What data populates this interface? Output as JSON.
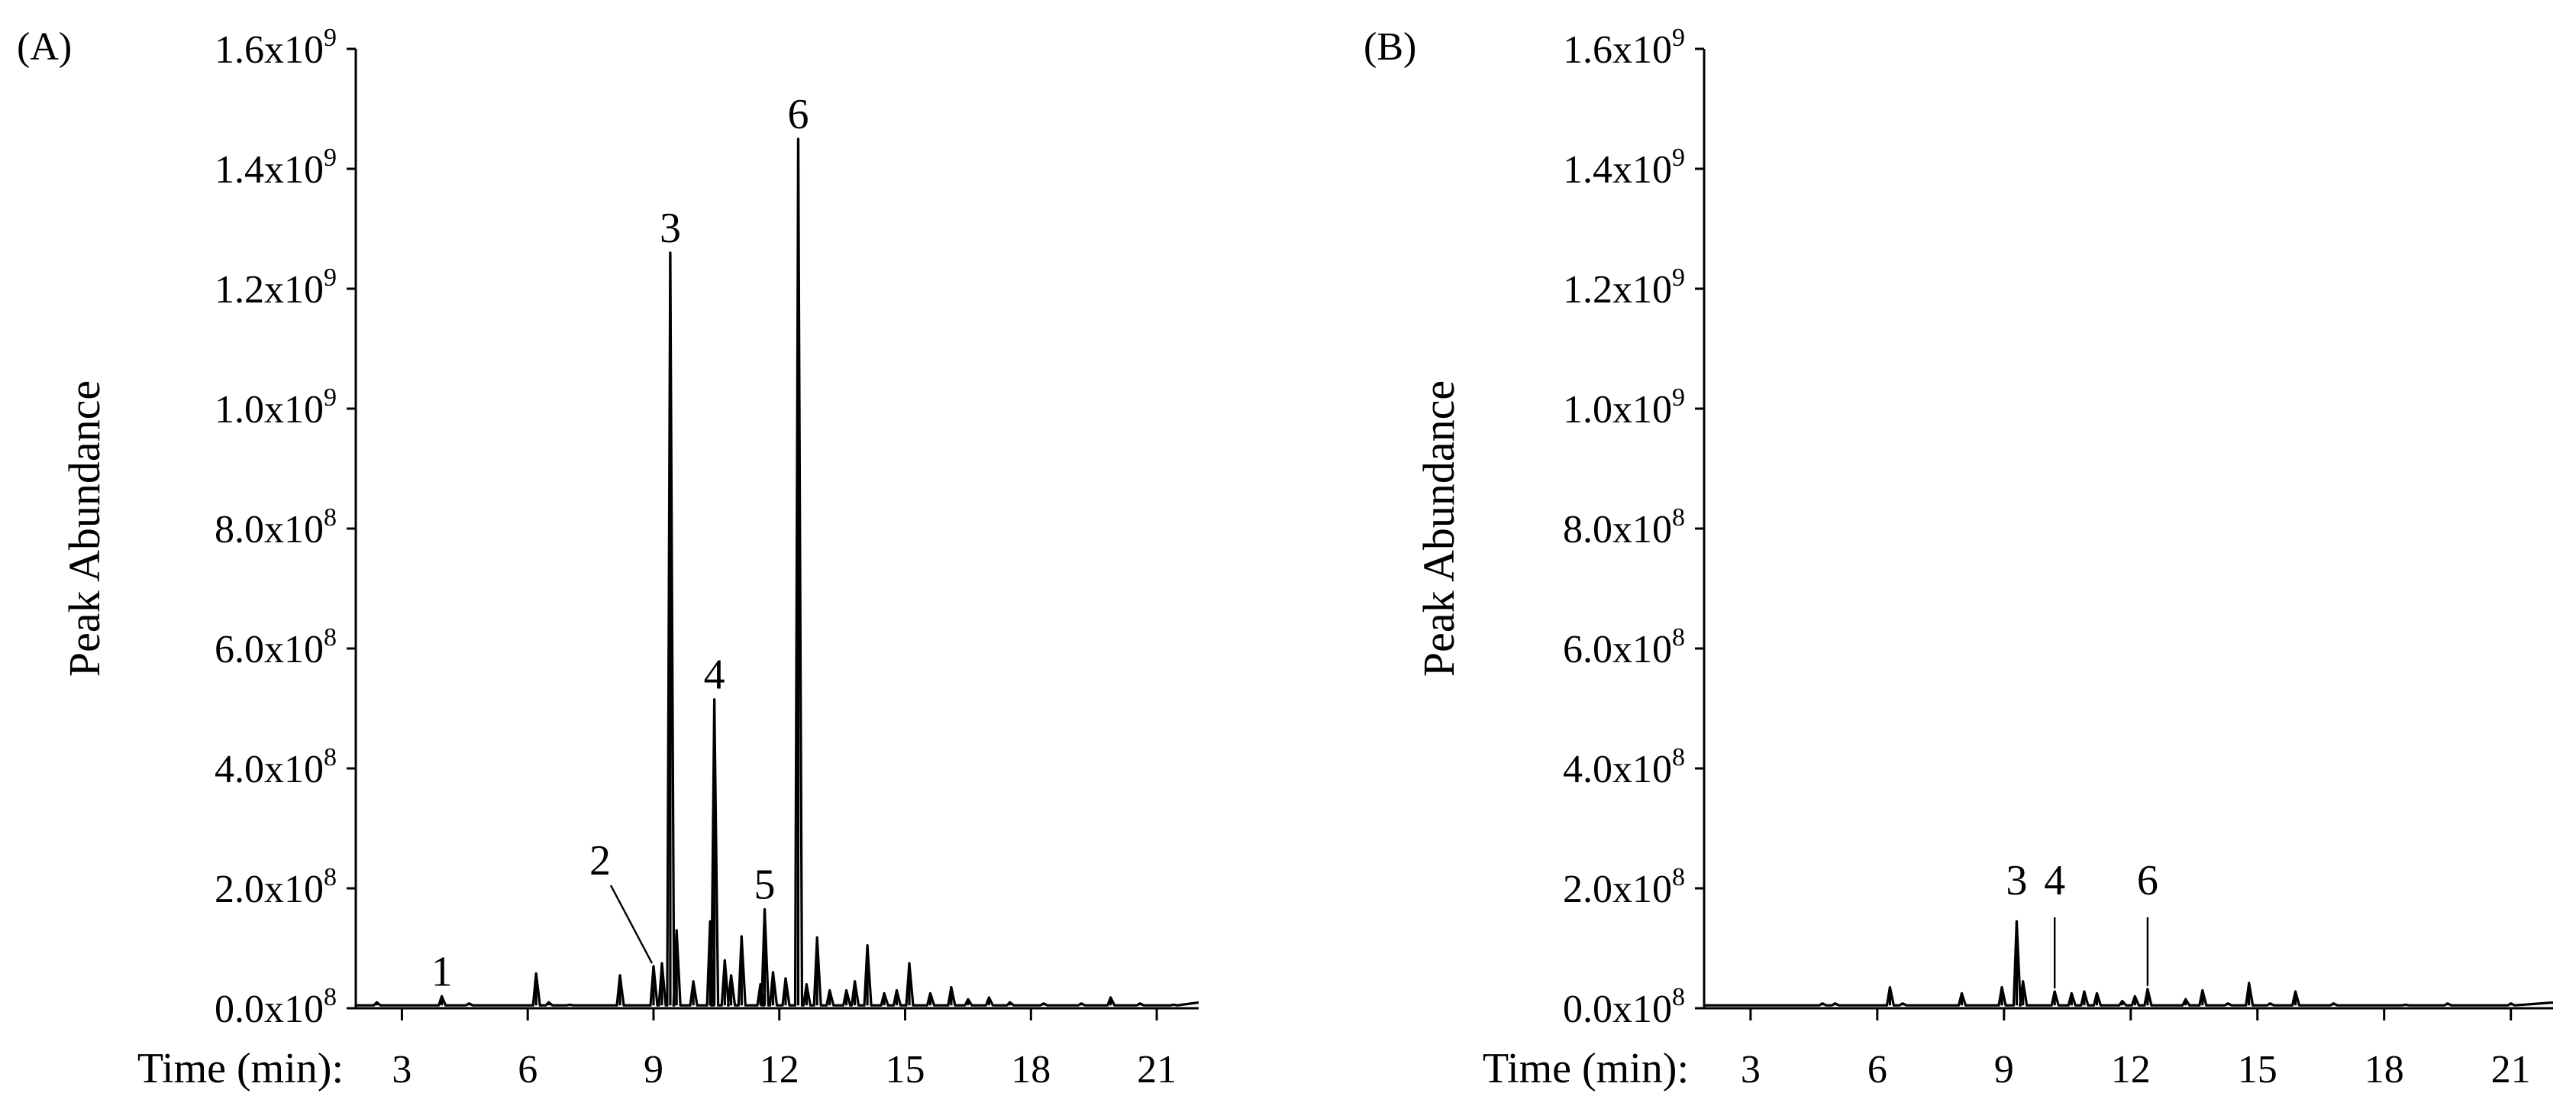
{
  "chart_data": [
    {
      "type": "line",
      "panel_label": "(A)",
      "ylabel": "Peak Abundance",
      "xlabel": "Time (min):",
      "xlim": [
        1.9,
        22
      ],
      "ylim": [
        0,
        1600000000
      ],
      "grid": false,
      "xticks": [
        {
          "value": 3,
          "label": "3"
        },
        {
          "value": 6,
          "label": "6"
        },
        {
          "value": 9,
          "label": "9"
        },
        {
          "value": 12,
          "label": "12"
        },
        {
          "value": 15,
          "label": "15"
        },
        {
          "value": 18,
          "label": "18"
        },
        {
          "value": 21,
          "label": "21"
        }
      ],
      "yticks": [
        {
          "value": 0,
          "mantissa": "0.0x10",
          "exp": "8"
        },
        {
          "value": 200000000,
          "mantissa": "2.0x10",
          "exp": "8"
        },
        {
          "value": 400000000,
          "mantissa": "4.0x10",
          "exp": "8"
        },
        {
          "value": 600000000,
          "mantissa": "6.0x10",
          "exp": "8"
        },
        {
          "value": 800000000,
          "mantissa": "8.0x10",
          "exp": "8"
        },
        {
          "value": 1000000000,
          "mantissa": "1.0x10",
          "exp": "9"
        },
        {
          "value": 1200000000,
          "mantissa": "1.2x10",
          "exp": "9"
        },
        {
          "value": 1400000000,
          "mantissa": "1.4x10",
          "exp": "9"
        },
        {
          "value": 1600000000,
          "mantissa": "1.6x10",
          "exp": "9"
        }
      ],
      "peaks": [
        {
          "x": 2.4,
          "y": 10000000
        },
        {
          "x": 3.95,
          "y": 20000000
        },
        {
          "x": 4.6,
          "y": 8000000
        },
        {
          "x": 6.2,
          "y": 58000000
        },
        {
          "x": 6.5,
          "y": 10000000
        },
        {
          "x": 7.0,
          "y": 6000000
        },
        {
          "x": 8.2,
          "y": 55000000
        },
        {
          "x": 9.0,
          "y": 70000000
        },
        {
          "x": 9.2,
          "y": 75000000
        },
        {
          "x": 9.4,
          "y": 1260000000
        },
        {
          "x": 9.55,
          "y": 130000000
        },
        {
          "x": 9.95,
          "y": 45000000
        },
        {
          "x": 10.35,
          "y": 145000000
        },
        {
          "x": 10.45,
          "y": 515000000
        },
        {
          "x": 10.7,
          "y": 80000000
        },
        {
          "x": 10.85,
          "y": 55000000
        },
        {
          "x": 11.1,
          "y": 120000000
        },
        {
          "x": 11.55,
          "y": 40000000
        },
        {
          "x": 11.65,
          "y": 165000000
        },
        {
          "x": 11.85,
          "y": 60000000
        },
        {
          "x": 12.15,
          "y": 50000000
        },
        {
          "x": 12.45,
          "y": 1450000000
        },
        {
          "x": 12.65,
          "y": 40000000
        },
        {
          "x": 12.9,
          "y": 118000000
        },
        {
          "x": 13.2,
          "y": 30000000
        },
        {
          "x": 13.6,
          "y": 30000000
        },
        {
          "x": 13.8,
          "y": 45000000
        },
        {
          "x": 14.1,
          "y": 105000000
        },
        {
          "x": 14.5,
          "y": 25000000
        },
        {
          "x": 14.8,
          "y": 30000000
        },
        {
          "x": 15.1,
          "y": 75000000
        },
        {
          "x": 15.6,
          "y": 25000000
        },
        {
          "x": 16.1,
          "y": 35000000
        },
        {
          "x": 16.5,
          "y": 15000000
        },
        {
          "x": 17.0,
          "y": 18000000
        },
        {
          "x": 17.5,
          "y": 10000000
        },
        {
          "x": 18.3,
          "y": 8000000
        },
        {
          "x": 19.2,
          "y": 8000000
        },
        {
          "x": 19.9,
          "y": 18000000
        },
        {
          "x": 20.6,
          "y": 8000000
        },
        {
          "x": 21.4,
          "y": 6000000
        }
      ],
      "peak_labels": [
        {
          "text": "1",
          "x": 3.95,
          "y": 20000000,
          "lead": false
        },
        {
          "text": "2",
          "x": 9.0,
          "y": 70000000,
          "lead": true
        },
        {
          "text": "3",
          "x": 9.4,
          "y": 1260000000,
          "lead": false
        },
        {
          "text": "4",
          "x": 10.45,
          "y": 515000000,
          "lead": false
        },
        {
          "text": "5",
          "x": 11.65,
          "y": 165000000,
          "lead": false
        },
        {
          "text": "6",
          "x": 12.45,
          "y": 1450000000,
          "lead": false
        }
      ]
    },
    {
      "type": "line",
      "panel_label": "(B)",
      "ylabel": "Peak Abundance",
      "xlabel": "Time (min):",
      "xlim": [
        1.9,
        22
      ],
      "ylim": [
        0,
        1600000000
      ],
      "grid": false,
      "xticks": [
        {
          "value": 3,
          "label": "3"
        },
        {
          "value": 6,
          "label": "6"
        },
        {
          "value": 9,
          "label": "9"
        },
        {
          "value": 12,
          "label": "12"
        },
        {
          "value": 15,
          "label": "15"
        },
        {
          "value": 18,
          "label": "18"
        },
        {
          "value": 21,
          "label": "21"
        }
      ],
      "yticks": [
        {
          "value": 0,
          "mantissa": "0.0x10",
          "exp": "8"
        },
        {
          "value": 200000000,
          "mantissa": "2.0x10",
          "exp": "8"
        },
        {
          "value": 400000000,
          "mantissa": "4.0x10",
          "exp": "8"
        },
        {
          "value": 600000000,
          "mantissa": "6.0x10",
          "exp": "8"
        },
        {
          "value": 800000000,
          "mantissa": "8.0x10",
          "exp": "8"
        },
        {
          "value": 1000000000,
          "mantissa": "1.0x10",
          "exp": "9"
        },
        {
          "value": 1200000000,
          "mantissa": "1.2x10",
          "exp": "9"
        },
        {
          "value": 1400000000,
          "mantissa": "1.4x10",
          "exp": "9"
        },
        {
          "value": 1600000000,
          "mantissa": "1.6x10",
          "exp": "9"
        }
      ],
      "peaks": [
        {
          "x": 4.7,
          "y": 8000000
        },
        {
          "x": 5.0,
          "y": 8000000
        },
        {
          "x": 6.3,
          "y": 35000000
        },
        {
          "x": 6.6,
          "y": 8000000
        },
        {
          "x": 8.0,
          "y": 25000000
        },
        {
          "x": 8.95,
          "y": 35000000
        },
        {
          "x": 9.3,
          "y": 145000000
        },
        {
          "x": 9.45,
          "y": 45000000
        },
        {
          "x": 10.2,
          "y": 28000000
        },
        {
          "x": 10.6,
          "y": 25000000
        },
        {
          "x": 10.9,
          "y": 28000000
        },
        {
          "x": 11.2,
          "y": 25000000
        },
        {
          "x": 11.8,
          "y": 12000000
        },
        {
          "x": 12.1,
          "y": 20000000
        },
        {
          "x": 12.4,
          "y": 32000000
        },
        {
          "x": 13.3,
          "y": 15000000
        },
        {
          "x": 13.7,
          "y": 30000000
        },
        {
          "x": 14.3,
          "y": 8000000
        },
        {
          "x": 14.8,
          "y": 42000000
        },
        {
          "x": 15.3,
          "y": 8000000
        },
        {
          "x": 15.9,
          "y": 28000000
        },
        {
          "x": 16.8,
          "y": 8000000
        },
        {
          "x": 18.5,
          "y": 6000000
        },
        {
          "x": 19.5,
          "y": 8000000
        },
        {
          "x": 21.0,
          "y": 8000000
        }
      ],
      "peak_labels": [
        {
          "text": "3",
          "x": 9.3,
          "y": 145000000,
          "lead": false
        },
        {
          "text": "4",
          "x": 10.2,
          "y": 28000000,
          "lead": true
        },
        {
          "text": "6",
          "x": 12.4,
          "y": 32000000,
          "lead": true
        }
      ]
    }
  ]
}
